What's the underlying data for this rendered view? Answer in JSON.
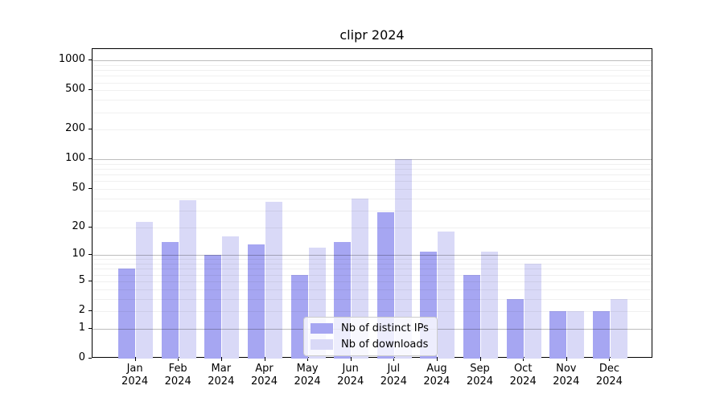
{
  "title": "clipr 2024",
  "chart_data": {
    "type": "bar",
    "title": "clipr 2024",
    "categories": [
      "Jan 2024",
      "Feb 2024",
      "Mar 2024",
      "Apr 2024",
      "May 2024",
      "Jun 2024",
      "Jul 2024",
      "Aug 2024",
      "Sep 2024",
      "Oct 2024",
      "Nov 2024",
      "Dec 2024"
    ],
    "series": [
      {
        "name": "Nb of distinct IPs",
        "color": "#a6a6f2",
        "values": [
          7,
          14,
          10,
          13,
          6,
          14,
          29,
          11,
          6,
          3,
          2,
          2
        ]
      },
      {
        "name": "Nb of downloads",
        "color": "#d9d9f7",
        "values": [
          23,
          38,
          16,
          37,
          12,
          40,
          100,
          18,
          11,
          8,
          2,
          3
        ]
      }
    ],
    "xlabel": "",
    "ylabel": "",
    "yscale": "log1p",
    "ylim": [
      0,
      1306
    ],
    "y_tick_labels": [
      0,
      1,
      2,
      5,
      10,
      20,
      50,
      100,
      200,
      500,
      1000
    ],
    "y_major_gridlines": [
      1,
      10,
      100,
      1000
    ],
    "y_minor_gridlines": [
      2,
      3,
      4,
      5,
      6,
      7,
      8,
      9,
      20,
      30,
      40,
      50,
      60,
      70,
      80,
      90,
      200,
      300,
      400,
      500,
      600,
      700,
      800,
      900
    ],
    "grid": true,
    "legend_position": "lower center"
  },
  "colors": {
    "bar_dark": "#a6a6f2",
    "bar_light": "#d9d9f7",
    "grid_major": "#bdbdbd",
    "grid_minor": "#ececec",
    "axis": "#000000",
    "legend_border": "#cccccc"
  }
}
